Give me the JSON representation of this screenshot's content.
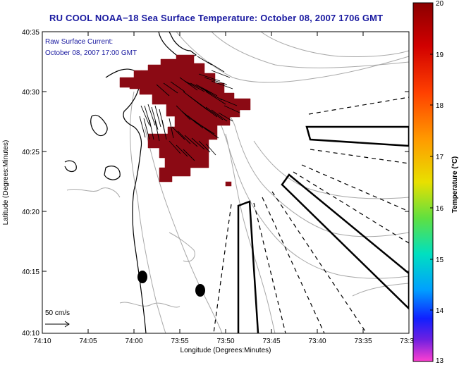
{
  "title": "RU COOL  NOAA−18  Sea Surface Temperature:  October 08, 2007 1706 GMT",
  "annotation": {
    "line1": "Raw Surface Current:",
    "line2": "October 08, 2007 17:00 GMT"
  },
  "scale_label": "50 cm/s",
  "xlabel": "Longitude (Degrees:Minutes)",
  "ylabel": "Latitude (Degrees:Minutes)",
  "x_ticks": [
    "74:10",
    "74:05",
    "74:00",
    "73:55",
    "73:50",
    "73:45",
    "73:40",
    "73:35",
    "73:3"
  ],
  "y_ticks": [
    "40:35",
    "40:30",
    "40:25",
    "40:20",
    "40:15",
    "40:10"
  ],
  "colorbar": {
    "label": "Temperature (°C)",
    "ticks": [
      "20",
      "19",
      "18",
      "17",
      "16",
      "15",
      "14",
      "13"
    ],
    "min": 13,
    "max": 20
  },
  "colors": {
    "title": "#1a1aa0",
    "sst_patch": "#8b0a14",
    "coastline": "#000000",
    "bathymetry": "#a0a0a0"
  }
}
